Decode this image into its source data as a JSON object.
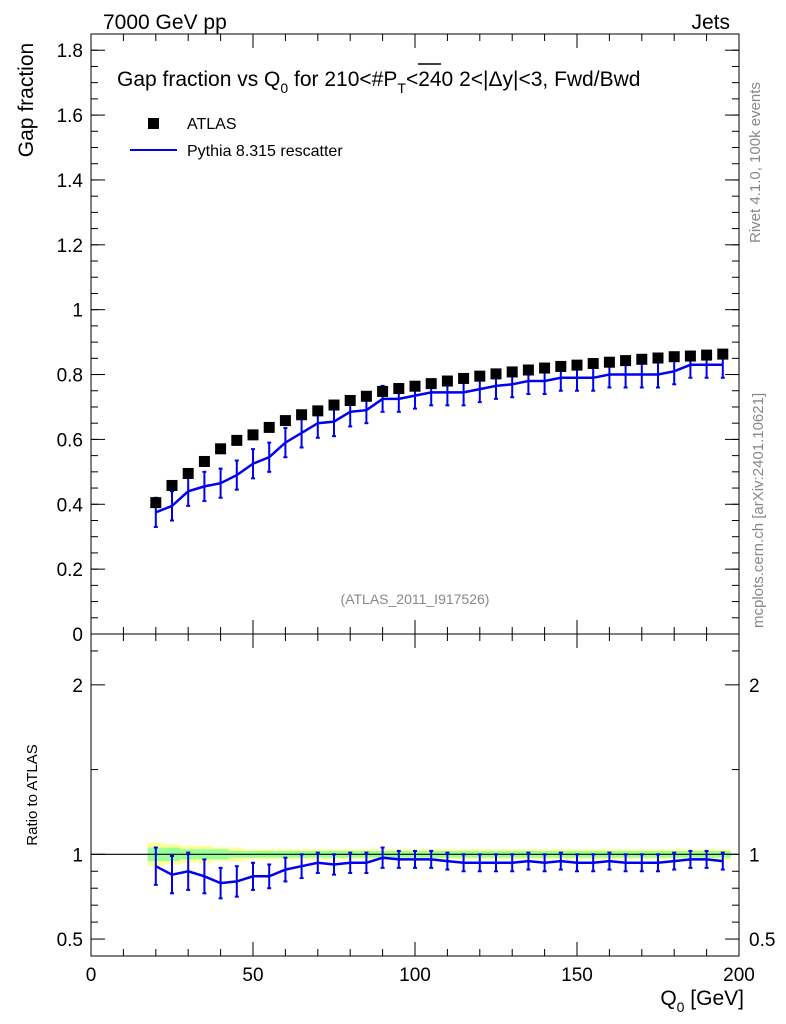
{
  "header": {
    "left": "7000 GeV pp",
    "right": "Jets"
  },
  "side_text": {
    "top": "Rivet 4.1.0,  100k events",
    "bottom": "mcplots.cern.ch [arXiv:2401.10621]"
  },
  "watermark": "(ATLAS_2011_I917526)",
  "chart_data": [
    {
      "type": "scatter",
      "title_parts": {
        "a": "Gap fraction vs Q",
        "sub": "0",
        "b": " for 210<#",
        "ptop": "P",
        "psub": "T",
        "c": "<240  2<|Δy|<3, Fwd/Bwd"
      },
      "ylabel": "Gap fraction",
      "ylim": [
        0,
        1.85
      ],
      "yticks": [
        0,
        0.2,
        0.4,
        0.6,
        0.8,
        1,
        1.2,
        1.4,
        1.6,
        1.8
      ],
      "ytick_labels": [
        "0",
        "0.2",
        "0.4",
        "0.6",
        "0.8",
        "1",
        "1.2",
        "1.4",
        "1.6",
        "1.8"
      ],
      "xlim": [
        0,
        200
      ],
      "legend": {
        "data_label": "ATLAS",
        "mc_label": "Pythia 8.315 rescatter",
        "placement": "top-left"
      },
      "colors": {
        "data": "#000000",
        "mc": "#0000ee"
      },
      "x": [
        20,
        25,
        30,
        35,
        40,
        45,
        50,
        55,
        60,
        65,
        70,
        75,
        80,
        85,
        90,
        95,
        100,
        105,
        110,
        115,
        120,
        125,
        130,
        135,
        140,
        145,
        150,
        155,
        160,
        165,
        170,
        175,
        180,
        185,
        190,
        195
      ],
      "series": [
        {
          "name": "ATLAS",
          "values": [
            0.405,
            0.458,
            0.495,
            0.532,
            0.571,
            0.597,
            0.614,
            0.637,
            0.658,
            0.676,
            0.688,
            0.706,
            0.72,
            0.733,
            0.748,
            0.757,
            0.764,
            0.772,
            0.78,
            0.788,
            0.795,
            0.802,
            0.808,
            0.814,
            0.82,
            0.825,
            0.829,
            0.834,
            0.838,
            0.843,
            0.847,
            0.851,
            0.855,
            0.857,
            0.86,
            0.863
          ]
        },
        {
          "name": "Pythia 8.315 rescatter",
          "values": [
            0.375,
            0.395,
            0.44,
            0.455,
            0.465,
            0.49,
            0.525,
            0.545,
            0.59,
            0.62,
            0.65,
            0.655,
            0.685,
            0.69,
            0.725,
            0.725,
            0.735,
            0.745,
            0.745,
            0.745,
            0.755,
            0.765,
            0.77,
            0.78,
            0.78,
            0.79,
            0.79,
            0.79,
            0.8,
            0.8,
            0.8,
            0.8,
            0.81,
            0.83,
            0.83,
            0.83
          ],
          "errors": [
            0.045,
            0.045,
            0.045,
            0.045,
            0.045,
            0.045,
            0.045,
            0.045,
            0.045,
            0.045,
            0.045,
            0.045,
            0.045,
            0.04,
            0.04,
            0.04,
            0.04,
            0.04,
            0.04,
            0.04,
            0.04,
            0.04,
            0.04,
            0.04,
            0.04,
            0.04,
            0.04,
            0.04,
            0.04,
            0.04,
            0.04,
            0.04,
            0.04,
            0.04,
            0.04,
            0.04
          ]
        }
      ]
    },
    {
      "type": "line",
      "ylabel": "Ratio to ATLAS",
      "xlabel_parts": {
        "a": "Q",
        "sub": "0",
        "b": " [GeV]"
      },
      "ylim": [
        0.4,
        2.3
      ],
      "yticks": [
        0.5,
        1,
        2
      ],
      "ytick_labels": [
        "0.5",
        "1",
        "2"
      ],
      "xlim": [
        0,
        200
      ],
      "xticks": [
        0,
        50,
        100,
        150,
        200
      ],
      "xtick_labels": [
        "0",
        "50",
        "100",
        "150",
        "200"
      ],
      "x": [
        20,
        25,
        30,
        35,
        40,
        45,
        50,
        55,
        60,
        65,
        70,
        75,
        80,
        85,
        90,
        95,
        100,
        105,
        110,
        115,
        120,
        125,
        130,
        135,
        140,
        145,
        150,
        155,
        160,
        165,
        170,
        175,
        180,
        185,
        190,
        195
      ],
      "ratio": [
        0.93,
        0.88,
        0.9,
        0.87,
        0.83,
        0.84,
        0.87,
        0.87,
        0.91,
        0.93,
        0.95,
        0.94,
        0.95,
        0.95,
        0.98,
        0.97,
        0.97,
        0.97,
        0.96,
        0.95,
        0.95,
        0.95,
        0.95,
        0.96,
        0.95,
        0.96,
        0.95,
        0.95,
        0.96,
        0.95,
        0.95,
        0.95,
        0.96,
        0.97,
        0.97,
        0.96
      ],
      "ratio_errors": [
        0.11,
        0.11,
        0.11,
        0.1,
        0.09,
        0.09,
        0.08,
        0.07,
        0.07,
        0.07,
        0.06,
        0.06,
        0.06,
        0.06,
        0.06,
        0.05,
        0.05,
        0.05,
        0.05,
        0.05,
        0.05,
        0.05,
        0.05,
        0.05,
        0.05,
        0.05,
        0.05,
        0.05,
        0.05,
        0.05,
        0.05,
        0.05,
        0.05,
        0.05,
        0.05,
        0.05
      ],
      "band_stat": [
        0.04,
        0.04,
        0.03,
        0.03,
        0.03,
        0.02,
        0.02,
        0.02,
        0.02,
        0.02,
        0.02,
        0.02,
        0.02,
        0.02,
        0.02,
        0.02,
        0.02,
        0.02,
        0.02,
        0.02,
        0.02,
        0.02,
        0.02,
        0.02,
        0.02,
        0.02,
        0.02,
        0.02,
        0.02,
        0.02,
        0.02,
        0.02,
        0.02,
        0.02,
        0.02,
        0.02
      ],
      "band_total": [
        0.07,
        0.06,
        0.05,
        0.05,
        0.04,
        0.04,
        0.03,
        0.03,
        0.03,
        0.03,
        0.03,
        0.03,
        0.03,
        0.03,
        0.03,
        0.03,
        0.03,
        0.03,
        0.03,
        0.03,
        0.03,
        0.03,
        0.03,
        0.03,
        0.03,
        0.03,
        0.03,
        0.03,
        0.03,
        0.03,
        0.03,
        0.03,
        0.03,
        0.03,
        0.03,
        0.03
      ],
      "band_colors": {
        "total": "#ffff99",
        "stat": "#99ff99"
      }
    }
  ]
}
